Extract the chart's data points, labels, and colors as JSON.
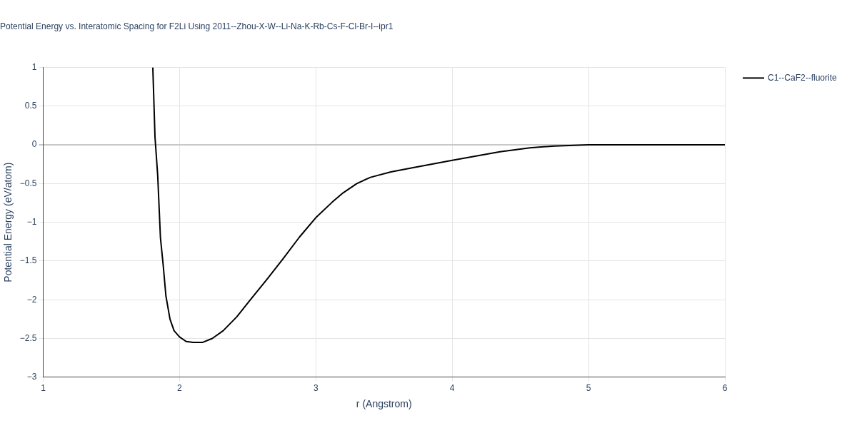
{
  "chart_data": {
    "type": "line",
    "title": "Potential Energy vs. Interatomic Spacing for F2Li Using 2011--Zhou-X-W--Li-Na-K-Rb-Cs-F-Cl-Br-I--ipr1",
    "xlabel": "r (Angstrom)",
    "ylabel": "Potential Energy (eV/atom)",
    "x": [
      1.804,
      1.82,
      1.84,
      1.86,
      1.88,
      1.9,
      1.93,
      1.96,
      2.0,
      2.05,
      2.1,
      2.17,
      2.24,
      2.32,
      2.42,
      2.52,
      2.64,
      2.76,
      2.88,
      3.0,
      3.12,
      3.2,
      3.3,
      3.4,
      3.55,
      3.7,
      4.0,
      4.35,
      4.57,
      4.75,
      5.0,
      6.0
    ],
    "series": [
      {
        "name": "C1--CaF2--fluorite",
        "color": "#000000",
        "values": [
          1.0,
          0.1,
          -0.4,
          -1.2,
          -1.55,
          -1.95,
          -2.25,
          -2.4,
          -2.48,
          -2.54,
          -2.55,
          -2.55,
          -2.5,
          -2.4,
          -2.22,
          -2.0,
          -1.74,
          -1.47,
          -1.19,
          -0.94,
          -0.74,
          -0.62,
          -0.5,
          -0.42,
          -0.35,
          -0.3,
          -0.2,
          -0.09,
          -0.04,
          -0.015,
          0,
          0
        ]
      }
    ],
    "xlim": [
      1,
      6
    ],
    "xticks": [
      1,
      2,
      3,
      4,
      5,
      6
    ],
    "ylim": [
      -3,
      1
    ],
    "yticks": [
      {
        "value": -3,
        "label": "−3"
      },
      {
        "value": -2.5,
        "label": "−2.5"
      },
      {
        "value": -2,
        "label": "−2"
      },
      {
        "value": -1.5,
        "label": "−1.5"
      },
      {
        "value": -1,
        "label": "−1"
      },
      {
        "value": -0.5,
        "label": "−0.5"
      },
      0,
      0.5,
      1
    ],
    "grid": true,
    "legend": "top right",
    "marker": "none",
    "line_style": "solid"
  }
}
